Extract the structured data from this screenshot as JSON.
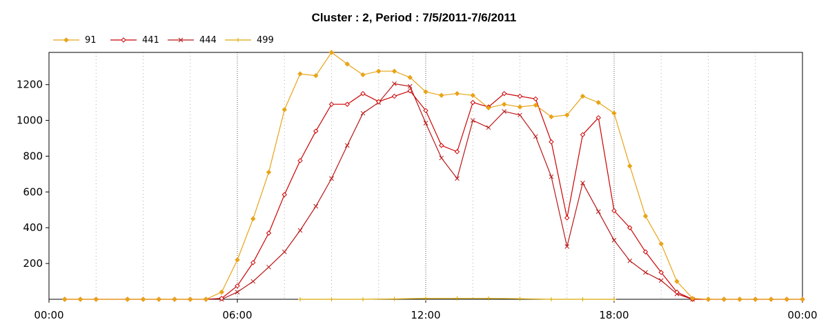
{
  "chart_data": {
    "type": "line",
    "title": "Cluster : 2, Period : 7/5/2011-7/6/2011",
    "xlabel": "",
    "ylabel": "",
    "x_tick_labels": [
      "00:00",
      "06:00",
      "12:00",
      "18:00",
      "00:00"
    ],
    "y_ticks": [
      200,
      400,
      600,
      800,
      1000,
      1200
    ],
    "xlim_hours": [
      0,
      24
    ],
    "ylim": [
      0,
      1380
    ],
    "grid": "vertical dotted",
    "legend_position": "top-left",
    "series": [
      {
        "name": "91",
        "color": "#e8a317",
        "marker": "diamond-filled",
        "points": [
          [
            0.5,
            0
          ],
          [
            1.0,
            0
          ],
          [
            1.5,
            0
          ],
          [
            2.5,
            0
          ],
          [
            3.0,
            0
          ],
          [
            3.5,
            0
          ],
          [
            4.0,
            0
          ],
          [
            4.5,
            0
          ],
          [
            5.0,
            0
          ],
          [
            5.5,
            40
          ],
          [
            6.0,
            220
          ],
          [
            6.5,
            450
          ],
          [
            7.0,
            710
          ],
          [
            7.5,
            1060
          ],
          [
            8.0,
            1260
          ],
          [
            8.5,
            1250
          ],
          [
            9.0,
            1380
          ],
          [
            9.5,
            1315
          ],
          [
            10.0,
            1255
          ],
          [
            10.5,
            1275
          ],
          [
            11.0,
            1275
          ],
          [
            11.5,
            1240
          ],
          [
            12.0,
            1160
          ],
          [
            12.5,
            1140
          ],
          [
            13.0,
            1150
          ],
          [
            13.5,
            1140
          ],
          [
            14.0,
            1070
          ],
          [
            14.5,
            1090
          ],
          [
            15.0,
            1075
          ],
          [
            15.5,
            1085
          ],
          [
            16.0,
            1020
          ],
          [
            16.5,
            1030
          ],
          [
            17.0,
            1135
          ],
          [
            17.5,
            1100
          ],
          [
            18.0,
            1040
          ],
          [
            18.5,
            745
          ],
          [
            19.0,
            465
          ],
          [
            19.5,
            310
          ],
          [
            20.0,
            100
          ],
          [
            20.5,
            5
          ],
          [
            21.0,
            0
          ],
          [
            21.5,
            0
          ],
          [
            22.0,
            0
          ],
          [
            22.5,
            0
          ],
          [
            23.0,
            0
          ],
          [
            23.5,
            0
          ],
          [
            24.0,
            0
          ]
        ]
      },
      {
        "name": "441",
        "color": "#cc0000",
        "marker": "diamond-open",
        "points": [
          [
            0.5,
            0
          ],
          [
            1.0,
            0
          ],
          [
            1.5,
            0
          ],
          [
            2.5,
            0
          ],
          [
            3.0,
            0
          ],
          [
            3.5,
            0
          ],
          [
            4.0,
            0
          ],
          [
            4.5,
            0
          ],
          [
            5.0,
            0
          ],
          [
            5.5,
            5
          ],
          [
            6.0,
            75
          ],
          [
            6.5,
            205
          ],
          [
            7.0,
            370
          ],
          [
            7.5,
            585
          ],
          [
            8.0,
            775
          ],
          [
            8.5,
            940
          ],
          [
            9.0,
            1090
          ],
          [
            9.5,
            1090
          ],
          [
            10.0,
            1150
          ],
          [
            10.5,
            1105
          ],
          [
            11.0,
            1135
          ],
          [
            11.5,
            1165
          ],
          [
            12.0,
            1055
          ],
          [
            12.5,
            860
          ],
          [
            13.0,
            825
          ],
          [
            13.5,
            1100
          ],
          [
            14.0,
            1075
          ],
          [
            14.5,
            1150
          ],
          [
            15.0,
            1135
          ],
          [
            15.5,
            1120
          ],
          [
            16.0,
            880
          ],
          [
            16.5,
            455
          ],
          [
            17.0,
            920
          ],
          [
            17.5,
            1015
          ],
          [
            18.0,
            495
          ],
          [
            18.5,
            400
          ],
          [
            19.0,
            265
          ],
          [
            19.5,
            150
          ],
          [
            20.0,
            40
          ],
          [
            20.5,
            0
          ],
          [
            21.0,
            0
          ],
          [
            21.5,
            0
          ],
          [
            22.0,
            0
          ],
          [
            22.5,
            0
          ],
          [
            23.0,
            0
          ],
          [
            23.5,
            0
          ],
          [
            24.0,
            0
          ]
        ]
      },
      {
        "name": "444",
        "color": "#b81616",
        "marker": "x",
        "points": [
          [
            5.5,
            0
          ],
          [
            6.0,
            40
          ],
          [
            6.5,
            100
          ],
          [
            7.0,
            180
          ],
          [
            7.5,
            265
          ],
          [
            8.0,
            385
          ],
          [
            8.5,
            520
          ],
          [
            9.0,
            675
          ],
          [
            9.5,
            860
          ],
          [
            10.0,
            1040
          ],
          [
            10.5,
            1100
          ],
          [
            11.0,
            1205
          ],
          [
            11.5,
            1190
          ],
          [
            12.0,
            985
          ],
          [
            12.5,
            790
          ],
          [
            13.0,
            675
          ],
          [
            13.5,
            1000
          ],
          [
            14.0,
            960
          ],
          [
            14.5,
            1050
          ],
          [
            15.0,
            1030
          ],
          [
            15.5,
            910
          ],
          [
            16.0,
            685
          ],
          [
            16.5,
            295
          ],
          [
            17.0,
            650
          ],
          [
            17.5,
            490
          ],
          [
            18.0,
            330
          ],
          [
            18.5,
            215
          ],
          [
            19.0,
            150
          ],
          [
            19.5,
            105
          ],
          [
            20.0,
            30
          ],
          [
            20.5,
            0
          ]
        ]
      },
      {
        "name": "499",
        "color": "#d9a600",
        "marker": "plus",
        "points": [
          [
            8.0,
            0
          ],
          [
            9.0,
            0
          ],
          [
            10.0,
            0
          ],
          [
            11.0,
            2
          ],
          [
            12.0,
            5
          ],
          [
            13.0,
            5
          ],
          [
            14.0,
            5
          ],
          [
            15.0,
            3
          ],
          [
            16.0,
            0
          ],
          [
            17.0,
            0
          ],
          [
            18.0,
            0
          ]
        ]
      }
    ]
  }
}
